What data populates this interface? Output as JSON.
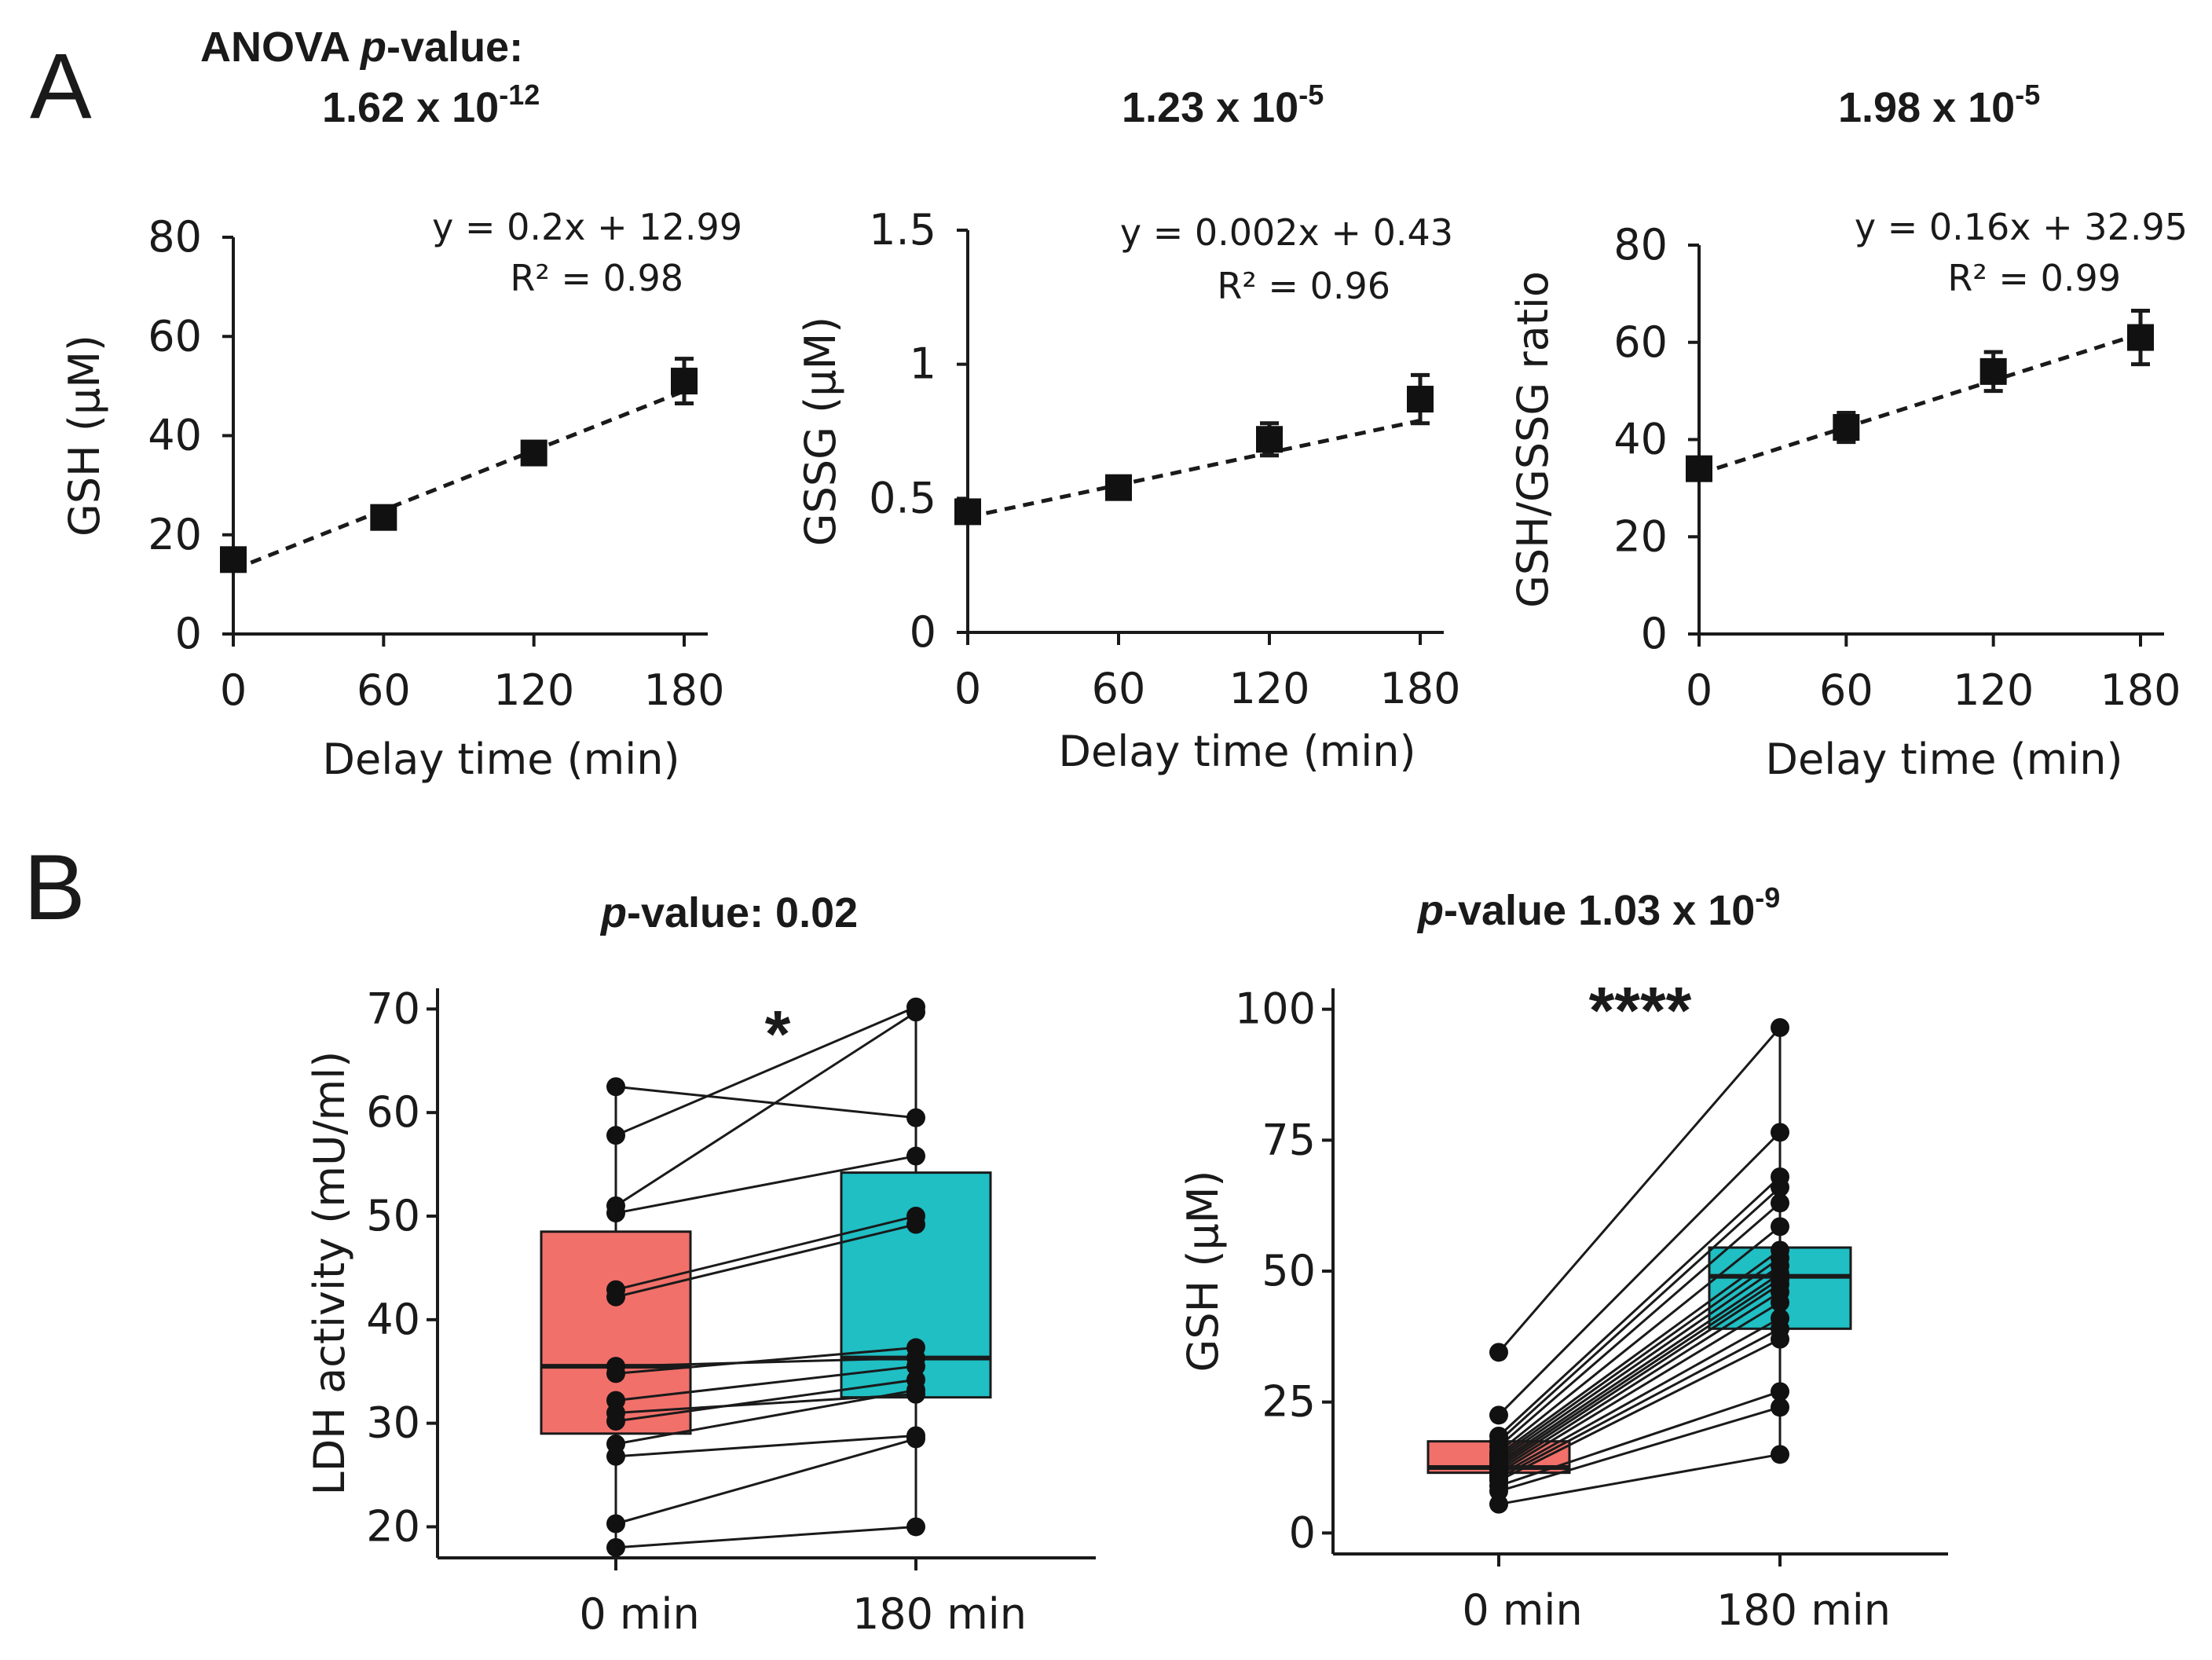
{
  "labels": {
    "panel_a": "A",
    "panel_b": "B"
  },
  "chart_data": [
    {
      "type": "scatter",
      "id": "gsh",
      "title_lines": [
        "ANOVA p-value:",
        "1.62 x 10-12"
      ],
      "title_italic": "p",
      "anova_mantissa": "1.62 x 10",
      "anova_exp": "-12",
      "x": [
        0,
        60,
        120,
        180
      ],
      "y": [
        15,
        23.5,
        36.5,
        51
      ],
      "err": [
        2,
        1.5,
        2,
        4.5
      ],
      "fit": {
        "slope": 0.2,
        "intercept": 12.99
      },
      "equation": "y = 0.2x + 12.99",
      "r2": "R² = 0.98",
      "xlabel": "Delay time (min)",
      "ylabel": "GSH (μM)",
      "xlim": [
        0,
        180
      ],
      "ylim": [
        0,
        80
      ],
      "xticks": [
        0,
        60,
        120,
        180
      ],
      "yticks": [
        0,
        20,
        40,
        60,
        80
      ],
      "ytick_labels": [
        "0",
        "20",
        "40",
        "60",
        "80"
      ]
    },
    {
      "type": "scatter",
      "id": "gssg",
      "anova_mantissa": "1.23 x 10",
      "anova_exp": "-5",
      "x": [
        0,
        60,
        120,
        180
      ],
      "y": [
        0.45,
        0.54,
        0.72,
        0.87
      ],
      "err": [
        0.04,
        0.03,
        0.06,
        0.09
      ],
      "fit": {
        "slope": 0.002,
        "intercept": 0.43
      },
      "equation": "y = 0.002x + 0.43",
      "r2": "R² = 0.96",
      "xlabel": "Delay time (min)",
      "ylabel": "GSSG (μM)",
      "xlim": [
        0,
        180
      ],
      "ylim": [
        0,
        1.5
      ],
      "xticks": [
        0,
        60,
        120,
        180
      ],
      "yticks": [
        0,
        0.5,
        1,
        1.5
      ],
      "ytick_labels": [
        "0",
        "0.5",
        "1",
        "1.5"
      ]
    },
    {
      "type": "scatter",
      "id": "ratio",
      "anova_mantissa": "1.98 x 10",
      "anova_exp": "-5",
      "x": [
        0,
        60,
        120,
        180
      ],
      "y": [
        34,
        42.5,
        54,
        61
      ],
      "err": [
        1.5,
        3,
        4,
        5.5
      ],
      "fit": {
        "slope": 0.16,
        "intercept": 32.95
      },
      "equation": "y = 0.16x + 32.95",
      "r2": "R² = 0.99",
      "xlabel": "Delay time (min)",
      "ylabel": "GSH/GSSG ratio",
      "xlim": [
        0,
        180
      ],
      "ylim": [
        0,
        80
      ],
      "xticks": [
        0,
        60,
        120,
        180
      ],
      "yticks": [
        0,
        20,
        40,
        60,
        80
      ],
      "ytick_labels": [
        "0",
        "20",
        "40",
        "60",
        "80"
      ]
    },
    {
      "type": "box",
      "id": "ldh",
      "title_prefix": "-value: 0.02",
      "title_italic": "p",
      "significance": "*",
      "categories": [
        "0 min",
        "180 min"
      ],
      "ylabel": "LDH activity (mU/ml)",
      "ylim": [
        17,
        72
      ],
      "yticks": [
        20,
        30,
        40,
        50,
        60,
        70
      ],
      "box": [
        {
          "q1": 29,
          "median": 35.5,
          "q3": 48.5,
          "whisker_low": 18,
          "whisker_high": 62.5,
          "color": "#F2706A"
        },
        {
          "q1": 32.5,
          "median": 36.3,
          "q3": 54.2,
          "whisker_low": 20,
          "whisker_high": 70,
          "color": "#1FBFC4"
        }
      ],
      "pairs": [
        [
          62.5,
          59.5
        ],
        [
          57.8,
          70.2
        ],
        [
          51,
          69.7
        ],
        [
          50.3,
          55.8
        ],
        [
          42.9,
          50
        ],
        [
          42.2,
          49.2
        ],
        [
          35.5,
          36.3
        ],
        [
          34.8,
          37.3
        ],
        [
          32.2,
          35.5
        ],
        [
          31,
          32.8
        ],
        [
          30.2,
          34.2
        ],
        [
          28,
          33.2
        ],
        [
          26.8,
          28.8
        ],
        [
          20.3,
          28.5
        ],
        [
          18,
          20
        ]
      ]
    },
    {
      "type": "box",
      "id": "gsh_box",
      "title_prefix": "-value  1.03  x 10",
      "title_italic": "p",
      "title_exp": "-9",
      "significance": "****",
      "categories": [
        "0 min",
        "180 min"
      ],
      "ylabel": "GSH (μM)",
      "ylim": [
        -4,
        104
      ],
      "yticks": [
        0,
        25,
        50,
        75,
        100
      ],
      "box": [
        {
          "q1": 11.5,
          "median": 12.5,
          "q3": 17.5,
          "whisker_low": 5.5,
          "whisker_high": 17.5,
          "color": "#F2706A"
        },
        {
          "q1": 39,
          "median": 49,
          "q3": 54.5,
          "whisker_low": 15,
          "whisker_high": 96.5,
          "color": "#1FBFC4"
        }
      ],
      "pairs": [
        [
          34.5,
          96.5
        ],
        [
          22.5,
          76.5
        ],
        [
          18.5,
          68
        ],
        [
          17.5,
          66
        ],
        [
          16.5,
          63
        ],
        [
          15.5,
          58.5
        ],
        [
          15,
          54
        ],
        [
          14.5,
          52.5
        ],
        [
          14,
          51
        ],
        [
          13.5,
          49.5
        ],
        [
          13,
          48.5
        ],
        [
          12.5,
          47.5
        ],
        [
          12,
          46
        ],
        [
          11.5,
          44
        ],
        [
          11,
          41
        ],
        [
          10.5,
          39
        ],
        [
          10,
          37
        ],
        [
          9,
          27
        ],
        [
          8,
          24
        ],
        [
          5.5,
          15
        ]
      ]
    }
  ]
}
